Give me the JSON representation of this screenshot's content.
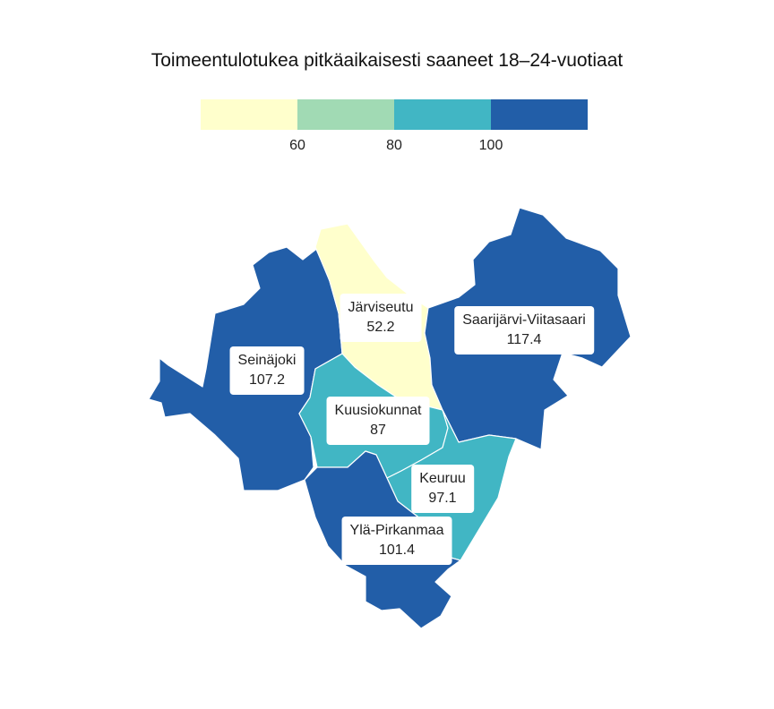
{
  "title": "Toimeentulotukea pitkäaikaisesti saaneet 18–24-vuotiaat",
  "legend": {
    "ticks": [
      "60",
      "80",
      "100"
    ],
    "colors": [
      "#ffffcc",
      "#a1dab4",
      "#41b6c4",
      "#225ea8"
    ]
  },
  "regions": [
    {
      "name": "Järviseutu",
      "value": "52.2",
      "color": "#ffffcc"
    },
    {
      "name": "Seinäjoki",
      "value": "107.2",
      "color": "#225ea8"
    },
    {
      "name": "Saarijärvi-Viitasaari",
      "value": "117.4",
      "color": "#225ea8"
    },
    {
      "name": "Kuusiokunnat",
      "value": "87",
      "color": "#41b6c4"
    },
    {
      "name": "Keuruu",
      "value": "97.1",
      "color": "#41b6c4"
    },
    {
      "name": "Ylä-Pirkanmaa",
      "value": "101.4",
      "color": "#225ea8"
    }
  ]
}
